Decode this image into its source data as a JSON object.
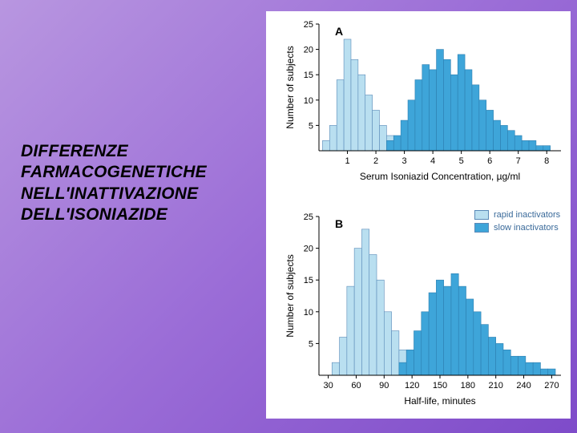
{
  "title_lines": [
    "DIFFERENZE",
    "FARMACOGENETICHE",
    "NELL'INATTIVAZIONE",
    "DELL'ISONIAZIDE"
  ],
  "colors": {
    "rapid": "#b9dff0",
    "slow": "#3ea5d9",
    "rapid_border": "#5a8ab8",
    "slow_border": "#2d7fb0",
    "axis": "#000000",
    "panel_bg": "#ffffff",
    "slide_gradient_start": "#b896e0",
    "slide_gradient_end": "#7e4bc9"
  },
  "legend": {
    "rapid_label": "rapid inactivators",
    "slow_label": "slow inactivators"
  },
  "chart_a": {
    "type": "histogram",
    "panel_letter": "A",
    "ylabel": "Number of subjects",
    "xlabel": "Serum Isoniazid Concentration, µg/ml",
    "ylim": [
      0,
      25
    ],
    "yticks": [
      5,
      10,
      15,
      20,
      25
    ],
    "xlim": [
      0,
      8.5
    ],
    "xticks": [
      1,
      2,
      3,
      4,
      5,
      6,
      7,
      8
    ],
    "bin_width": 0.25,
    "series": [
      {
        "name": "rapid",
        "color_key": "rapid",
        "bins": [
          {
            "x": 0.25,
            "y": 2
          },
          {
            "x": 0.5,
            "y": 5
          },
          {
            "x": 0.75,
            "y": 14
          },
          {
            "x": 1.0,
            "y": 22
          },
          {
            "x": 1.25,
            "y": 18
          },
          {
            "x": 1.5,
            "y": 15
          },
          {
            "x": 1.75,
            "y": 11
          },
          {
            "x": 2.0,
            "y": 8
          },
          {
            "x": 2.25,
            "y": 5
          },
          {
            "x": 2.5,
            "y": 3
          }
        ]
      },
      {
        "name": "slow",
        "color_key": "slow",
        "bins": [
          {
            "x": 2.5,
            "y": 2
          },
          {
            "x": 2.75,
            "y": 3
          },
          {
            "x": 3.0,
            "y": 6
          },
          {
            "x": 3.25,
            "y": 10
          },
          {
            "x": 3.5,
            "y": 14
          },
          {
            "x": 3.75,
            "y": 17
          },
          {
            "x": 4.0,
            "y": 16
          },
          {
            "x": 4.25,
            "y": 20
          },
          {
            "x": 4.5,
            "y": 18
          },
          {
            "x": 4.75,
            "y": 15
          },
          {
            "x": 5.0,
            "y": 19
          },
          {
            "x": 5.25,
            "y": 16
          },
          {
            "x": 5.5,
            "y": 13
          },
          {
            "x": 5.75,
            "y": 10
          },
          {
            "x": 6.0,
            "y": 8
          },
          {
            "x": 6.25,
            "y": 6
          },
          {
            "x": 6.5,
            "y": 5
          },
          {
            "x": 6.75,
            "y": 4
          },
          {
            "x": 7.0,
            "y": 3
          },
          {
            "x": 7.25,
            "y": 2
          },
          {
            "x": 7.5,
            "y": 2
          },
          {
            "x": 7.75,
            "y": 1
          },
          {
            "x": 8.0,
            "y": 1
          }
        ]
      }
    ]
  },
  "chart_b": {
    "type": "histogram",
    "panel_letter": "B",
    "ylabel": "Number of subjects",
    "xlabel": "Half-life, minutes",
    "ylim": [
      0,
      25
    ],
    "yticks": [
      5,
      10,
      15,
      20,
      25
    ],
    "xlim": [
      20,
      280
    ],
    "xticks": [
      30,
      60,
      90,
      120,
      150,
      180,
      210,
      240,
      270
    ],
    "bin_width": 8,
    "series": [
      {
        "name": "rapid",
        "color_key": "rapid",
        "bins": [
          {
            "x": 38,
            "y": 2
          },
          {
            "x": 46,
            "y": 6
          },
          {
            "x": 54,
            "y": 14
          },
          {
            "x": 62,
            "y": 20
          },
          {
            "x": 70,
            "y": 23
          },
          {
            "x": 78,
            "y": 19
          },
          {
            "x": 86,
            "y": 15
          },
          {
            "x": 94,
            "y": 10
          },
          {
            "x": 102,
            "y": 7
          },
          {
            "x": 110,
            "y": 4
          }
        ]
      },
      {
        "name": "slow",
        "color_key": "slow",
        "bins": [
          {
            "x": 110,
            "y": 2
          },
          {
            "x": 118,
            "y": 4
          },
          {
            "x": 126,
            "y": 7
          },
          {
            "x": 134,
            "y": 10
          },
          {
            "x": 142,
            "y": 13
          },
          {
            "x": 150,
            "y": 15
          },
          {
            "x": 158,
            "y": 14
          },
          {
            "x": 166,
            "y": 16
          },
          {
            "x": 174,
            "y": 14
          },
          {
            "x": 182,
            "y": 12
          },
          {
            "x": 190,
            "y": 10
          },
          {
            "x": 198,
            "y": 8
          },
          {
            "x": 206,
            "y": 6
          },
          {
            "x": 214,
            "y": 5
          },
          {
            "x": 222,
            "y": 4
          },
          {
            "x": 230,
            "y": 3
          },
          {
            "x": 238,
            "y": 3
          },
          {
            "x": 246,
            "y": 2
          },
          {
            "x": 254,
            "y": 2
          },
          {
            "x": 262,
            "y": 1
          },
          {
            "x": 270,
            "y": 1
          }
        ]
      }
    ]
  }
}
